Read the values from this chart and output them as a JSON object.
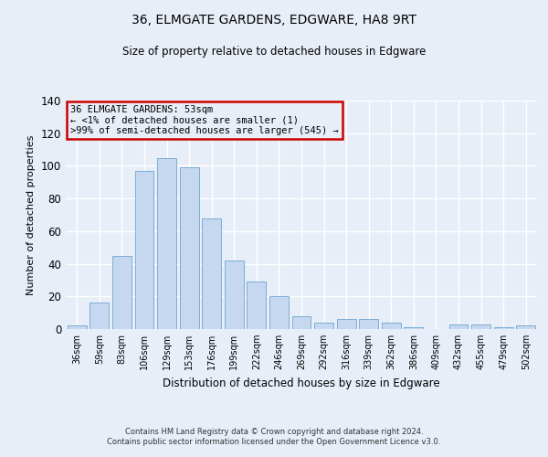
{
  "title": "36, ELMGATE GARDENS, EDGWARE, HA8 9RT",
  "subtitle": "Size of property relative to detached houses in Edgware",
  "xlabel": "Distribution of detached houses by size in Edgware",
  "ylabel": "Number of detached properties",
  "categories": [
    "36sqm",
    "59sqm",
    "83sqm",
    "106sqm",
    "129sqm",
    "153sqm",
    "176sqm",
    "199sqm",
    "222sqm",
    "246sqm",
    "269sqm",
    "292sqm",
    "316sqm",
    "339sqm",
    "362sqm",
    "386sqm",
    "409sqm",
    "432sqm",
    "455sqm",
    "479sqm",
    "502sqm"
  ],
  "values": [
    2,
    16,
    45,
    97,
    105,
    99,
    68,
    42,
    29,
    20,
    8,
    4,
    6,
    6,
    4,
    1,
    0,
    3,
    3,
    1,
    2
  ],
  "bar_color": "#c5d8f0",
  "bar_edge_color": "#7aadd4",
  "ylim": [
    0,
    140
  ],
  "yticks": [
    0,
    20,
    40,
    60,
    80,
    100,
    120,
    140
  ],
  "annotation_box_text": "36 ELMGATE GARDENS: 53sqm\n← <1% of detached houses are smaller (1)\n>99% of semi-detached houses are larger (545) →",
  "footer_line1": "Contains HM Land Registry data © Crown copyright and database right 2024.",
  "footer_line2": "Contains public sector information licensed under the Open Government Licence v3.0.",
  "background_color": "#e8eef8",
  "grid_color": "#ffffff",
  "box_color": "#cc0000"
}
